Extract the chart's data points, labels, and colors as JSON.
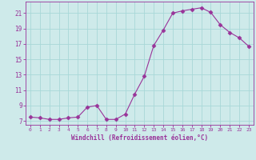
{
  "x": [
    0,
    1,
    2,
    3,
    4,
    5,
    6,
    7,
    8,
    9,
    10,
    11,
    12,
    13,
    14,
    15,
    16,
    17,
    18,
    19,
    20,
    21,
    22,
    23
  ],
  "y": [
    7.5,
    7.4,
    7.2,
    7.2,
    7.4,
    7.5,
    8.8,
    9.0,
    7.2,
    7.2,
    7.9,
    10.5,
    12.8,
    16.8,
    18.8,
    21.0,
    21.3,
    21.5,
    21.7,
    21.1,
    19.5,
    18.5,
    17.8,
    16.7
  ],
  "line_color": "#993399",
  "marker": "D",
  "marker_size": 2.5,
  "bg_color": "#ceeaea",
  "grid_color": "#a8d8d8",
  "xlabel": "Windchill (Refroidissement éolien,°C)",
  "xlabel_color": "#993399",
  "tick_color": "#993399",
  "xlim": [
    -0.5,
    23.5
  ],
  "ylim": [
    6.5,
    22.5
  ],
  "yticks": [
    7,
    9,
    11,
    13,
    15,
    17,
    19,
    21
  ],
  "xticks": [
    0,
    1,
    2,
    3,
    4,
    5,
    6,
    7,
    8,
    9,
    10,
    11,
    12,
    13,
    14,
    15,
    16,
    17,
    18,
    19,
    20,
    21,
    22,
    23
  ]
}
